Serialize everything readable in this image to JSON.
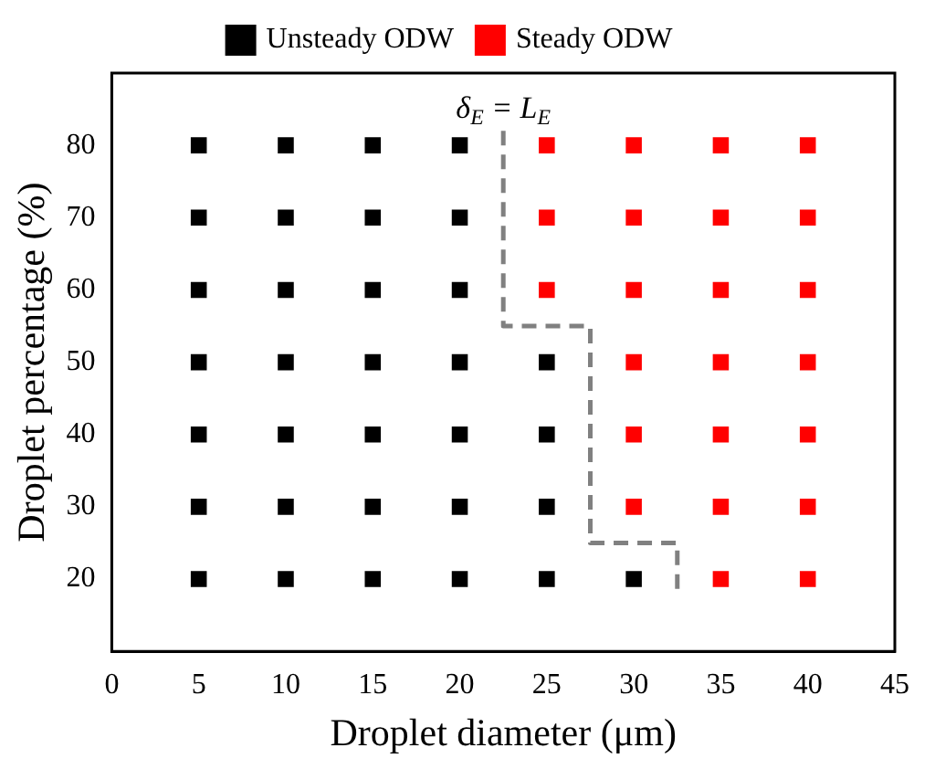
{
  "chart_data": {
    "type": "scatter",
    "xlabel": "Droplet diameter (μm)",
    "ylabel": "Droplet percentage (%)",
    "xlim": [
      0,
      45
    ],
    "xticks": [
      0,
      5,
      10,
      15,
      20,
      25,
      30,
      35,
      40,
      45
    ],
    "ylim": [
      10,
      90
    ],
    "yticks": [
      20,
      30,
      40,
      50,
      60,
      70,
      80
    ],
    "grid": false,
    "legend": "top",
    "marker": "square",
    "series": [
      {
        "name": "Unsteady ODW",
        "color": "#000000",
        "x": [
          5,
          10,
          15,
          20,
          5,
          10,
          15,
          20,
          5,
          10,
          15,
          20,
          5,
          10,
          15,
          20,
          25,
          5,
          10,
          15,
          20,
          25,
          5,
          10,
          15,
          20,
          25,
          5,
          10,
          15,
          20,
          25,
          30
        ],
        "values": [
          80,
          80,
          80,
          80,
          70,
          70,
          70,
          70,
          60,
          60,
          60,
          60,
          50,
          50,
          50,
          50,
          50,
          40,
          40,
          40,
          40,
          40,
          30,
          30,
          30,
          30,
          30,
          20,
          20,
          20,
          20,
          20,
          20
        ]
      },
      {
        "name": "Steady ODW",
        "color": "#ff0000",
        "x": [
          25,
          30,
          35,
          40,
          25,
          30,
          35,
          40,
          25,
          30,
          35,
          40,
          30,
          35,
          40,
          30,
          35,
          40,
          30,
          35,
          40,
          35,
          40
        ],
        "values": [
          80,
          80,
          80,
          80,
          70,
          70,
          70,
          70,
          60,
          60,
          60,
          60,
          50,
          50,
          50,
          40,
          40,
          40,
          30,
          30,
          30,
          20,
          20
        ]
      },
      {
        "type": "line",
        "color": "#808080",
        "line_style": "dashed",
        "marker": "none",
        "x": [
          22.5,
          22.5,
          27.5,
          27.5,
          32.5,
          32.5
        ],
        "values": [
          82,
          55,
          55,
          25,
          25,
          18
        ]
      }
    ],
    "annotations": [
      "δ$_{E}$ = L$_{E}$"
    ]
  }
}
